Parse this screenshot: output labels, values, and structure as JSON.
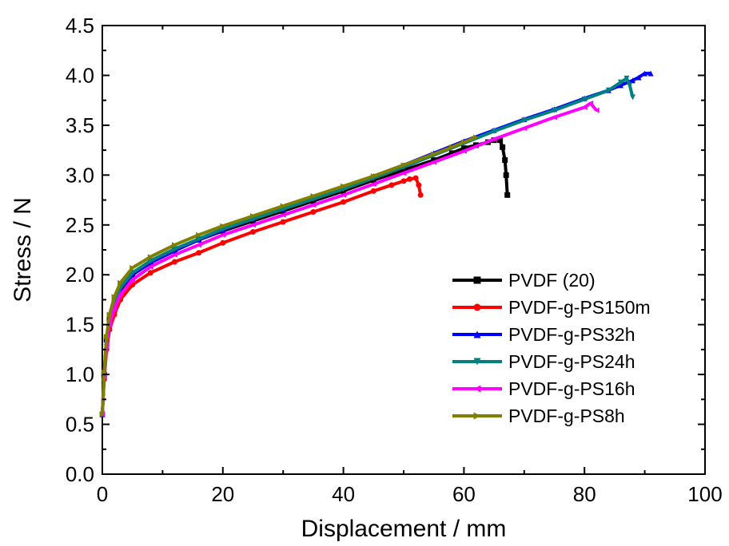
{
  "chart_data": {
    "type": "line",
    "title": "",
    "xlabel": "Displacement / mm",
    "ylabel": "Stress / N",
    "xlim": [
      0,
      100
    ],
    "ylim": [
      0,
      4.5
    ],
    "xticks": [
      0,
      20,
      40,
      60,
      80,
      100
    ],
    "xtick_labels": [
      "0",
      "20",
      "40",
      "60",
      "80",
      "100"
    ],
    "yticks": [
      0.0,
      0.5,
      1.0,
      1.5,
      2.0,
      2.5,
      3.0,
      3.5,
      4.0,
      4.5
    ],
    "ytick_labels": [
      "0.0",
      "0.5",
      "1.0",
      "1.5",
      "2.0",
      "2.5",
      "3.0",
      "3.5",
      "4.0",
      "4.5"
    ],
    "grid": false,
    "legend_position": "lower-right",
    "series": [
      {
        "name": "PVDF (20)",
        "color": "#000000",
        "marker": "square",
        "x": [
          0,
          0.3,
          0.7,
          1.2,
          2,
          3,
          5,
          8,
          12,
          16,
          20,
          25,
          30,
          35,
          40,
          45,
          50,
          55,
          58,
          60,
          62,
          64,
          65,
          66,
          66.4,
          66.8,
          67.0,
          67.2
        ],
        "y": [
          0.6,
          1.0,
          1.35,
          1.55,
          1.72,
          1.85,
          2.0,
          2.12,
          2.25,
          2.35,
          2.44,
          2.54,
          2.64,
          2.74,
          2.84,
          2.95,
          3.05,
          3.15,
          3.22,
          3.27,
          3.3,
          3.33,
          3.35,
          3.35,
          3.28,
          3.15,
          3.0,
          2.8
        ]
      },
      {
        "name": "PVDF-g-PS150m",
        "color": "#ff0000",
        "marker": "circle",
        "x": [
          0,
          0.3,
          0.7,
          1.2,
          2,
          3,
          5,
          8,
          12,
          16,
          20,
          25,
          30,
          35,
          40,
          45,
          48,
          50,
          51,
          52,
          52.5,
          52.8
        ],
        "y": [
          0.6,
          0.95,
          1.25,
          1.45,
          1.6,
          1.75,
          1.9,
          2.02,
          2.13,
          2.22,
          2.32,
          2.43,
          2.53,
          2.63,
          2.73,
          2.84,
          2.9,
          2.94,
          2.96,
          2.97,
          2.9,
          2.8
        ]
      },
      {
        "name": "PVDF-g-PS32h",
        "color": "#0000ff",
        "marker": "triangle-up",
        "x": [
          0,
          0.3,
          0.7,
          1.2,
          2,
          3,
          5,
          8,
          12,
          16,
          20,
          25,
          30,
          35,
          40,
          45,
          50,
          55,
          60,
          65,
          70,
          75,
          80,
          84,
          86,
          88,
          89,
          90,
          91
        ],
        "y": [
          0.6,
          1.0,
          1.35,
          1.55,
          1.72,
          1.86,
          2.0,
          2.12,
          2.24,
          2.35,
          2.45,
          2.56,
          2.66,
          2.77,
          2.88,
          2.99,
          3.1,
          3.22,
          3.34,
          3.45,
          3.56,
          3.66,
          3.77,
          3.85,
          3.9,
          3.95,
          3.98,
          4.02,
          4.02
        ]
      },
      {
        "name": "PVDF-g-PS24h",
        "color": "#008080",
        "marker": "triangle-down",
        "x": [
          0,
          0.3,
          0.7,
          1.2,
          2,
          3,
          5,
          8,
          12,
          16,
          20,
          25,
          30,
          35,
          40,
          45,
          50,
          55,
          60,
          65,
          70,
          75,
          80,
          84,
          86,
          87,
          87.5,
          88
        ],
        "y": [
          0.6,
          1.0,
          1.36,
          1.56,
          1.73,
          1.87,
          2.02,
          2.14,
          2.26,
          2.36,
          2.46,
          2.56,
          2.66,
          2.76,
          2.86,
          2.97,
          3.08,
          3.2,
          3.32,
          3.44,
          3.55,
          3.65,
          3.76,
          3.85,
          3.93,
          3.97,
          3.9,
          3.78
        ]
      },
      {
        "name": "PVDF-g-PS16h",
        "color": "#ff00ff",
        "marker": "triangle-left",
        "x": [
          0,
          0.3,
          0.7,
          1.2,
          2,
          3,
          5,
          8,
          12,
          16,
          20,
          25,
          30,
          35,
          40,
          45,
          50,
          55,
          60,
          65,
          70,
          75,
          80,
          81,
          82
        ],
        "y": [
          0.6,
          0.98,
          1.3,
          1.5,
          1.66,
          1.8,
          1.95,
          2.08,
          2.2,
          2.3,
          2.4,
          2.5,
          2.6,
          2.7,
          2.8,
          2.91,
          3.02,
          3.13,
          3.24,
          3.36,
          3.47,
          3.58,
          3.68,
          3.72,
          3.65
        ]
      },
      {
        "name": "PVDF-g-PS8h",
        "color": "#808000",
        "marker": "triangle-right",
        "x": [
          0,
          0.3,
          0.7,
          1.2,
          2,
          3,
          5,
          8,
          12,
          16,
          20,
          25,
          30,
          35,
          40,
          45,
          50,
          55,
          58,
          60,
          62
        ],
        "y": [
          0.6,
          1.02,
          1.38,
          1.6,
          1.78,
          1.92,
          2.07,
          2.18,
          2.3,
          2.4,
          2.49,
          2.59,
          2.69,
          2.79,
          2.89,
          2.99,
          3.1,
          3.21,
          3.28,
          3.33,
          3.38
        ]
      }
    ]
  }
}
